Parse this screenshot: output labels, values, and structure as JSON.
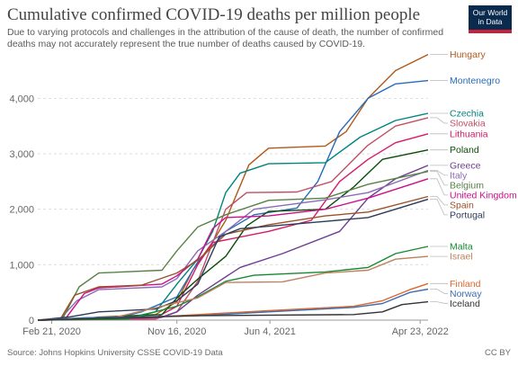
{
  "header": {
    "title": "Cumulative confirmed COVID-19 deaths per million people",
    "subtitle": "Due to varying protocols and challenges in the attribution of the cause of death, the number of confirmed deaths may not accurately represent the true number of deaths caused by COVID-19.",
    "logo_line1": "Our World",
    "logo_line2": "in Data"
  },
  "footer": {
    "source": "Source: Johns Hopkins University CSSE COVID-19 Data",
    "license": "CC BY"
  },
  "colors": {
    "grid": "#dddddd",
    "axis": "#999999"
  },
  "chart_data": {
    "type": "line",
    "x_start": "2020-01-22",
    "x_end": "2022-05-10",
    "ylim": [
      0,
      4800
    ],
    "y_ticks": [
      0,
      1000,
      2000,
      3000,
      4000
    ],
    "y_tick_labels": [
      "0",
      "1,000",
      "2,000",
      "3,000",
      "4,000"
    ],
    "x_ticks": [
      {
        "date": "2020-02-21",
        "label": "Feb 21, 2020"
      },
      {
        "date": "2020-11-16",
        "label": "Nov 16, 2020"
      },
      {
        "date": "2021-06-04",
        "label": "Jun 4, 2021"
      },
      {
        "date": "2022-04-23",
        "label": "Apr 23, 2022"
      }
    ],
    "series": [
      {
        "name": "Hungary",
        "color": "#b0591b",
        "points": [
          [
            "2020-01-22",
            0
          ],
          [
            "2020-04-01",
            10
          ],
          [
            "2020-06-01",
            55
          ],
          [
            "2020-10-01",
            100
          ],
          [
            "2020-11-16",
            330
          ],
          [
            "2020-12-20",
            900
          ],
          [
            "2021-01-31",
            1400
          ],
          [
            "2021-03-01",
            1800
          ],
          [
            "2021-04-20",
            2800
          ],
          [
            "2021-06-01",
            3100
          ],
          [
            "2021-10-01",
            3140
          ],
          [
            "2021-11-15",
            3400
          ],
          [
            "2022-01-01",
            4000
          ],
          [
            "2022-03-01",
            4500
          ],
          [
            "2022-05-10",
            4790
          ]
        ]
      },
      {
        "name": "Montenegro",
        "color": "#286bbb",
        "points": [
          [
            "2020-01-22",
            0
          ],
          [
            "2020-07-01",
            20
          ],
          [
            "2020-09-01",
            150
          ],
          [
            "2020-11-16",
            420
          ],
          [
            "2020-12-31",
            1050
          ],
          [
            "2021-03-01",
            1600
          ],
          [
            "2021-05-01",
            1900
          ],
          [
            "2021-08-01",
            2020
          ],
          [
            "2021-09-15",
            2500
          ],
          [
            "2021-11-01",
            3400
          ],
          [
            "2022-01-01",
            4000
          ],
          [
            "2022-03-01",
            4260
          ],
          [
            "2022-05-10",
            4320
          ]
        ]
      },
      {
        "name": "Czechia",
        "color": "#00847e",
        "points": [
          [
            "2020-01-22",
            0
          ],
          [
            "2020-08-01",
            40
          ],
          [
            "2020-10-01",
            150
          ],
          [
            "2020-11-16",
            650
          ],
          [
            "2020-12-31",
            1100
          ],
          [
            "2021-02-01",
            1600
          ],
          [
            "2021-03-01",
            2300
          ],
          [
            "2021-04-01",
            2650
          ],
          [
            "2021-06-01",
            2820
          ],
          [
            "2021-10-01",
            2840
          ],
          [
            "2021-12-15",
            3300
          ],
          [
            "2022-03-01",
            3600
          ],
          [
            "2022-05-10",
            3730
          ]
        ]
      },
      {
        "name": "Slovakia",
        "color": "#c15065",
        "points": [
          [
            "2020-01-22",
            0
          ],
          [
            "2020-10-01",
            20
          ],
          [
            "2020-11-16",
            150
          ],
          [
            "2020-12-31",
            700
          ],
          [
            "2021-02-01",
            1400
          ],
          [
            "2021-03-01",
            2000
          ],
          [
            "2021-04-15",
            2300
          ],
          [
            "2021-08-01",
            2310
          ],
          [
            "2021-10-15",
            2500
          ],
          [
            "2021-12-31",
            3150
          ],
          [
            "2022-03-01",
            3500
          ],
          [
            "2022-05-10",
            3650
          ]
        ]
      },
      {
        "name": "Lithuania",
        "color": "#d71967",
        "points": [
          [
            "2020-01-22",
            0
          ],
          [
            "2020-10-01",
            40
          ],
          [
            "2020-11-16",
            250
          ],
          [
            "2020-12-31",
            1000
          ],
          [
            "2021-02-01",
            1400
          ],
          [
            "2021-06-01",
            1600
          ],
          [
            "2021-09-01",
            1800
          ],
          [
            "2021-11-01",
            2500
          ],
          [
            "2022-01-01",
            2900
          ],
          [
            "2022-03-01",
            3200
          ],
          [
            "2022-05-10",
            3360
          ]
        ]
      },
      {
        "name": "Poland",
        "color": "#0a4d0a",
        "points": [
          [
            "2020-01-22",
            0
          ],
          [
            "2020-10-15",
            100
          ],
          [
            "2020-11-16",
            400
          ],
          [
            "2020-12-31",
            740
          ],
          [
            "2021-03-01",
            1150
          ],
          [
            "2021-04-15",
            1700
          ],
          [
            "2021-06-01",
            1960
          ],
          [
            "2021-10-01",
            2000
          ],
          [
            "2021-12-01",
            2400
          ],
          [
            "2022-02-01",
            2900
          ],
          [
            "2022-05-10",
            3070
          ]
        ]
      },
      {
        "name": "Greece",
        "color": "#6d3e91",
        "points": [
          [
            "2020-01-22",
            0
          ],
          [
            "2020-10-15",
            50
          ],
          [
            "2020-11-16",
            150
          ],
          [
            "2020-12-31",
            450
          ],
          [
            "2021-04-01",
            950
          ],
          [
            "2021-07-01",
            1200
          ],
          [
            "2021-11-01",
            1600
          ],
          [
            "2022-01-01",
            2200
          ],
          [
            "2022-03-01",
            2550
          ],
          [
            "2022-05-10",
            2790
          ]
        ]
      },
      {
        "name": "Italy",
        "color": "#8a6cb5",
        "points": [
          [
            "2020-01-22",
            0
          ],
          [
            "2020-03-10",
            20
          ],
          [
            "2020-04-15",
            350
          ],
          [
            "2020-06-01",
            550
          ],
          [
            "2020-10-15",
            600
          ],
          [
            "2020-11-16",
            750
          ],
          [
            "2020-12-31",
            1250
          ],
          [
            "2021-03-01",
            1600
          ],
          [
            "2021-05-01",
            2000
          ],
          [
            "2021-10-01",
            2170
          ],
          [
            "2022-01-01",
            2300
          ],
          [
            "2022-05-10",
            2700
          ]
        ]
      },
      {
        "name": "Belgium",
        "color": "#578145",
        "points": [
          [
            "2020-01-22",
            0
          ],
          [
            "2020-03-15",
            20
          ],
          [
            "2020-04-20",
            600
          ],
          [
            "2020-06-01",
            850
          ],
          [
            "2020-10-15",
            900
          ],
          [
            "2020-11-16",
            1250
          ],
          [
            "2020-12-31",
            1680
          ],
          [
            "2021-03-01",
            1900
          ],
          [
            "2021-06-01",
            2160
          ],
          [
            "2021-10-01",
            2200
          ],
          [
            "2022-01-01",
            2450
          ],
          [
            "2022-05-10",
            2680
          ]
        ]
      },
      {
        "name": "United Kingdom",
        "color": "#cc0f8b",
        "points": [
          [
            "2020-01-22",
            0
          ],
          [
            "2020-03-20",
            10
          ],
          [
            "2020-05-01",
            480
          ],
          [
            "2020-06-01",
            580
          ],
          [
            "2020-10-15",
            650
          ],
          [
            "2020-11-16",
            800
          ],
          [
            "2020-12-31",
            1100
          ],
          [
            "2021-02-01",
            1650
          ],
          [
            "2021-03-01",
            1850
          ],
          [
            "2021-06-01",
            1880
          ],
          [
            "2021-10-01",
            2000
          ],
          [
            "2022-01-01",
            2200
          ],
          [
            "2022-05-10",
            2550
          ]
        ]
      },
      {
        "name": "Spain",
        "color": "#9a5129",
        "points": [
          [
            "2020-01-22",
            0
          ],
          [
            "2020-03-10",
            10
          ],
          [
            "2020-04-10",
            450
          ],
          [
            "2020-06-01",
            600
          ],
          [
            "2020-09-01",
            630
          ],
          [
            "2020-11-16",
            850
          ],
          [
            "2020-12-31",
            1080
          ],
          [
            "2021-03-01",
            1550
          ],
          [
            "2021-06-01",
            1720
          ],
          [
            "2021-10-01",
            1880
          ],
          [
            "2022-01-01",
            1950
          ],
          [
            "2022-05-10",
            2230
          ]
        ]
      },
      {
        "name": "Portugal",
        "color": "#2c3b58",
        "points": [
          [
            "2020-01-22",
            0
          ],
          [
            "2020-04-01",
            60
          ],
          [
            "2020-06-01",
            150
          ],
          [
            "2020-10-01",
            200
          ],
          [
            "2020-11-16",
            350
          ],
          [
            "2020-12-31",
            650
          ],
          [
            "2021-02-15",
            1500
          ],
          [
            "2021-04-01",
            1650
          ],
          [
            "2021-10-01",
            1780
          ],
          [
            "2022-01-01",
            1850
          ],
          [
            "2022-05-10",
            2180
          ]
        ]
      },
      {
        "name": "Malta",
        "color": "#158a33",
        "points": [
          [
            "2020-01-22",
            0
          ],
          [
            "2020-08-01",
            20
          ],
          [
            "2020-11-16",
            250
          ],
          [
            "2020-12-31",
            420
          ],
          [
            "2021-03-01",
            700
          ],
          [
            "2021-05-01",
            810
          ],
          [
            "2021-10-01",
            870
          ],
          [
            "2022-01-01",
            950
          ],
          [
            "2022-03-01",
            1200
          ],
          [
            "2022-05-10",
            1330
          ]
        ]
      },
      {
        "name": "Israel",
        "color": "#c0805b",
        "points": [
          [
            "2020-01-22",
            0
          ],
          [
            "2020-07-01",
            40
          ],
          [
            "2020-10-15",
            250
          ],
          [
            "2020-12-31",
            400
          ],
          [
            "2021-03-01",
            680
          ],
          [
            "2021-07-01",
            690
          ],
          [
            "2021-10-01",
            850
          ],
          [
            "2022-01-01",
            900
          ],
          [
            "2022-03-01",
            1100
          ],
          [
            "2022-05-10",
            1150
          ]
        ]
      },
      {
        "name": "Finland",
        "color": "#e0662b",
        "points": [
          [
            "2020-01-22",
            0
          ],
          [
            "2020-05-01",
            40
          ],
          [
            "2020-10-01",
            60
          ],
          [
            "2020-12-31",
            100
          ],
          [
            "2021-06-01",
            170
          ],
          [
            "2021-12-01",
            250
          ],
          [
            "2022-02-01",
            350
          ],
          [
            "2022-04-01",
            550
          ],
          [
            "2022-05-10",
            660
          ]
        ]
      },
      {
        "name": "Norway",
        "color": "#3c6fb1",
        "points": [
          [
            "2020-01-22",
            0
          ],
          [
            "2020-05-01",
            40
          ],
          [
            "2020-12-31",
            80
          ],
          [
            "2021-06-01",
            150
          ],
          [
            "2021-12-01",
            230
          ],
          [
            "2022-02-01",
            300
          ],
          [
            "2022-04-01",
            500
          ],
          [
            "2022-05-10",
            560
          ]
        ]
      },
      {
        "name": "Iceland",
        "color": "#333333",
        "points": [
          [
            "2020-01-22",
            0
          ],
          [
            "2020-04-15",
            20
          ],
          [
            "2020-12-31",
            80
          ],
          [
            "2021-12-01",
            100
          ],
          [
            "2022-02-01",
            150
          ],
          [
            "2022-03-15",
            280
          ],
          [
            "2022-05-10",
            330
          ]
        ]
      }
    ]
  }
}
